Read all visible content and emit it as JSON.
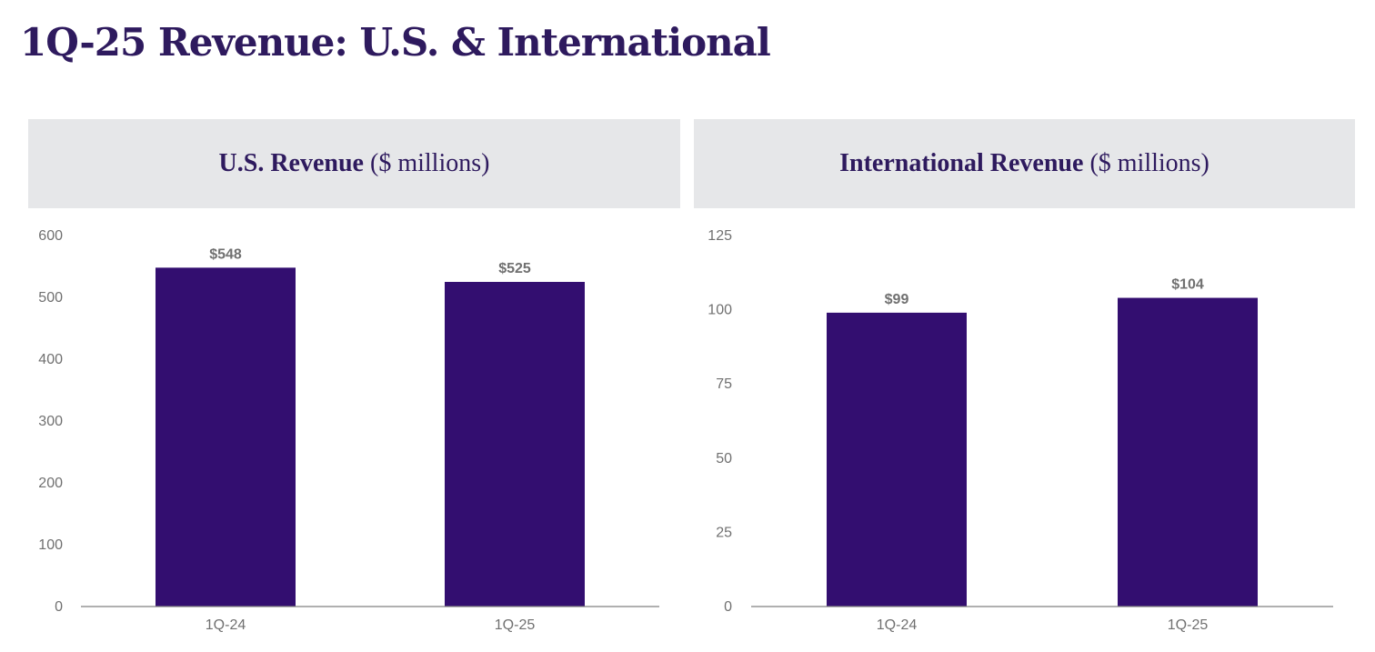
{
  "page": {
    "title": "1Q-25 Revenue: U.S. & International"
  },
  "colors": {
    "title": "#2e1a5e",
    "bar": "#330e70",
    "header_bg": "#e6e7e9",
    "axis_text": "#707070",
    "data_label": "#707070",
    "baseline": "#808080"
  },
  "chart_data": [
    {
      "type": "bar",
      "title_bold": "U.S. Revenue",
      "title_rest": "($ millions)",
      "categories": [
        "1Q-24",
        "1Q-25"
      ],
      "values": [
        548,
        525
      ],
      "data_labels": [
        "$548",
        "$525"
      ],
      "ylim": [
        0,
        600
      ],
      "yticks": [
        0,
        100,
        200,
        300,
        400,
        500,
        600
      ],
      "grid": false,
      "legend": "none"
    },
    {
      "type": "bar",
      "title_bold": "International Revenue",
      "title_rest": "($ millions)",
      "categories": [
        "1Q-24",
        "1Q-25"
      ],
      "values": [
        99,
        104
      ],
      "data_labels": [
        "$99",
        "$104"
      ],
      "ylim": [
        0,
        125
      ],
      "yticks": [
        0,
        25,
        50,
        75,
        100,
        125
      ],
      "grid": false,
      "legend": "none"
    }
  ]
}
